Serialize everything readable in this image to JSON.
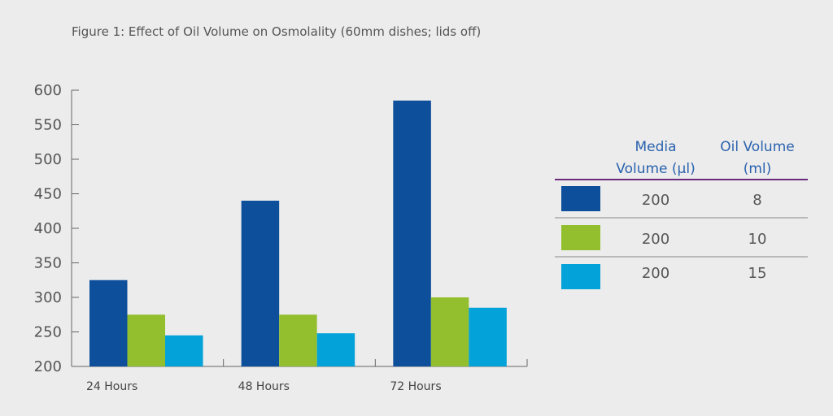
{
  "title": "Figure 1: Effect of Oil Volume on Osmolality (60mm dishes; lids off)",
  "legend": {
    "header_media_line1": "Media",
    "header_media_line2": "Volume (µl)",
    "header_oil_line1": "Oil Volume",
    "header_oil_line2": "(ml)",
    "rows": [
      {
        "media": "200",
        "oil": "8",
        "color": "#0e4f9c"
      },
      {
        "media": "200",
        "oil": "10",
        "color": "#93bf2f"
      },
      {
        "media": "200",
        "oil": "15",
        "color": "#03a2d8"
      }
    ],
    "header_rule_color": "#6a2c7a"
  },
  "chart_data": {
    "type": "bar",
    "title": "Figure 1: Effect of Oil Volume on Osmolality (60mm dishes; lids off)",
    "categories": [
      "24 Hours",
      "48 Hours",
      "72 Hours"
    ],
    "series": [
      {
        "values": [
          325,
          440,
          585
        ],
        "color": "#0e4f9c"
      },
      {
        "values": [
          275,
          275,
          300
        ],
        "color": "#93bf2f"
      },
      {
        "values": [
          245,
          248,
          285
        ],
        "color": "#03a2d8"
      }
    ],
    "ylim": [
      200,
      600
    ],
    "yticks": [
      200,
      250,
      300,
      350,
      400,
      450,
      500,
      550,
      600
    ],
    "xlabel": "",
    "ylabel": "",
    "grid": false,
    "legend_position": "right"
  }
}
